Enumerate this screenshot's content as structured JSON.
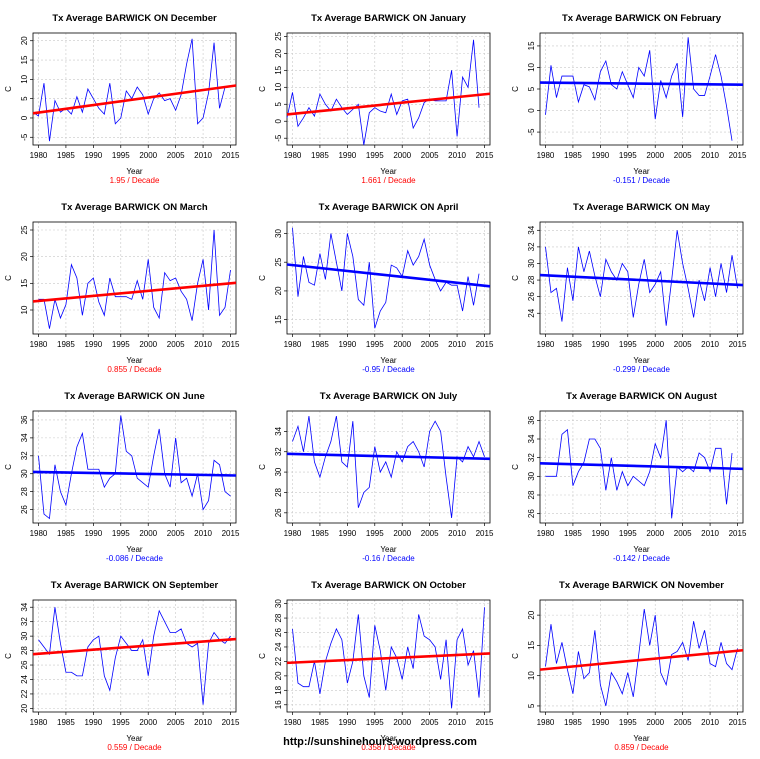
{
  "credit": "http://sunshinehours.wordpress.com",
  "colors": {
    "up": "#ff0000",
    "down": "#0000ff",
    "series": "#0000ff",
    "grid": "#c8c8c8"
  },
  "chart_data": [
    {
      "type": "line",
      "title": "Tx Average BARWICK ON December",
      "xlabel": "Year",
      "ylabel": "C",
      "trend_label": "1.95  / Decade",
      "trend_direction": "up",
      "x_range": [
        1979,
        2016
      ],
      "xticks": [
        1980,
        1985,
        1990,
        1995,
        2000,
        2005,
        2010,
        2015
      ],
      "ylim": [
        -7,
        22
      ],
      "yticks": [
        -5,
        0,
        5,
        10,
        15,
        20
      ],
      "trend_line": [
        1.2,
        8.4
      ],
      "x_start": 1979,
      "values": [
        1.5,
        0.5,
        9,
        -6,
        4.5,
        1.5,
        2.5,
        1,
        5.5,
        1.5,
        7.5,
        5,
        2.5,
        1,
        9,
        -1.5,
        0,
        7,
        5,
        8,
        6,
        1,
        5,
        6.5,
        4.5,
        5,
        2,
        6,
        14,
        20.5,
        -1.5,
        0,
        6.5,
        19.5,
        2.5,
        8
      ]
    },
    {
      "type": "line",
      "title": "Tx Average BARWICK ON January",
      "xlabel": "Year",
      "ylabel": "C",
      "trend_label": "1.661  / Decade",
      "trend_direction": "up",
      "x_range": [
        1979,
        2016
      ],
      "xticks": [
        1980,
        1985,
        1990,
        1995,
        2000,
        2005,
        2010,
        2015
      ],
      "ylim": [
        -7,
        26
      ],
      "yticks": [
        -5,
        0,
        5,
        10,
        15,
        20,
        25
      ],
      "trend_line": [
        2.0,
        8.1
      ],
      "x_start": 1979,
      "values": [
        1,
        8.5,
        -1.5,
        1,
        4,
        1.5,
        8,
        5,
        3,
        6.5,
        4,
        2,
        3.5,
        5,
        -7,
        2.5,
        4,
        3,
        2.5,
        8,
        2,
        6,
        6.5,
        -2,
        1,
        5.5,
        6.5,
        6,
        6,
        6,
        15,
        -4.5,
        13,
        10,
        24,
        4
      ]
    },
    {
      "type": "line",
      "title": "Tx Average BARWICK ON February",
      "xlabel": "Year",
      "ylabel": "C",
      "trend_label": "-0.151  / Decade",
      "trend_direction": "down",
      "x_range": [
        1979,
        2016
      ],
      "xticks": [
        1980,
        1985,
        1990,
        1995,
        2000,
        2005,
        2010,
        2015
      ],
      "ylim": [
        -8,
        18
      ],
      "yticks": [
        -5,
        0,
        5,
        10,
        15
      ],
      "trend_line": [
        6.5,
        6.0
      ],
      "x_start": 1980,
      "values": [
        -1,
        10.5,
        3,
        8,
        8,
        8,
        2,
        6,
        5.5,
        2.5,
        9,
        11.5,
        6,
        5,
        9,
        6,
        3,
        10,
        8,
        14,
        -2,
        7,
        3,
        8,
        11,
        -1.5,
        17,
        5,
        3.5,
        3.5,
        8,
        13,
        8,
        1,
        -7
      ]
    },
    {
      "type": "line",
      "title": "Tx Average BARWICK ON March",
      "xlabel": "Year",
      "ylabel": "C",
      "trend_label": "0.855  / Decade",
      "trend_direction": "up",
      "x_range": [
        1979,
        2016
      ],
      "xticks": [
        1980,
        1985,
        1990,
        1995,
        2000,
        2005,
        2010,
        2015
      ],
      "ylim": [
        5.5,
        26.5
      ],
      "yticks": [
        10,
        15,
        20,
        25
      ],
      "trend_line": [
        11.6,
        15.1
      ],
      "x_start": 1980,
      "values": [
        12,
        12,
        6.5,
        12,
        8.5,
        11,
        18.5,
        16,
        9,
        15,
        16,
        11.5,
        9,
        16,
        12.5,
        12.5,
        12.5,
        12,
        15.5,
        12,
        19.5,
        10.5,
        8.5,
        17,
        15.5,
        16,
        13.5,
        12,
        8,
        15,
        19.5,
        10,
        25,
        9,
        10.5,
        17.5
      ]
    },
    {
      "type": "line",
      "title": "Tx Average BARWICK ON April",
      "xlabel": "Year",
      "ylabel": "C",
      "trend_label": "-0.95  / Decade",
      "trend_direction": "down",
      "x_range": [
        1979,
        2016
      ],
      "xticks": [
        1980,
        1985,
        1990,
        1995,
        2000,
        2005,
        2010,
        2015
      ],
      "ylim": [
        12.5,
        32
      ],
      "yticks": [
        15,
        20,
        25,
        30
      ],
      "trend_line": [
        24.6,
        20.8
      ],
      "x_start": 1980,
      "values": [
        31,
        19,
        26,
        21.5,
        21,
        26.5,
        22,
        30,
        25,
        20,
        30,
        26,
        18.5,
        17.5,
        25,
        13.5,
        16.5,
        18,
        24.5,
        24,
        22.5,
        27,
        24.5,
        26,
        29,
        24.5,
        22,
        20,
        21.5,
        21,
        21,
        16.5,
        22.5,
        17.5,
        23
      ]
    },
    {
      "type": "line",
      "title": "Tx Average BARWICK ON May",
      "xlabel": "Year",
      "ylabel": "C",
      "trend_label": "-0.299  / Decade",
      "trend_direction": "down",
      "x_range": [
        1979,
        2016
      ],
      "xticks": [
        1980,
        1985,
        1990,
        1995,
        2000,
        2005,
        2010,
        2015
      ],
      "ylim": [
        21.5,
        35
      ],
      "yticks": [
        24,
        26,
        28,
        30,
        32,
        34
      ],
      "trend_line": [
        28.6,
        27.4
      ],
      "x_start": 1980,
      "values": [
        32,
        26.5,
        27,
        23,
        29.5,
        25.5,
        32,
        29,
        31.5,
        28.5,
        26,
        30.5,
        29,
        28,
        30,
        29,
        23.5,
        27.5,
        30.5,
        26.5,
        27.5,
        29,
        22.5,
        28,
        34,
        30,
        27,
        23.5,
        28,
        25.5,
        29.5,
        26,
        30,
        26.5,
        31,
        27
      ]
    },
    {
      "type": "line",
      "title": "Tx Average BARWICK ON June",
      "xlabel": "Year",
      "ylabel": "C",
      "trend_label": "-0.086  / Decade",
      "trend_direction": "down",
      "x_range": [
        1979,
        2016
      ],
      "xticks": [
        1980,
        1985,
        1990,
        1995,
        2000,
        2005,
        2010,
        2015
      ],
      "ylim": [
        24.5,
        37
      ],
      "yticks": [
        26,
        28,
        30,
        32,
        34,
        36
      ],
      "trend_line": [
        30.2,
        29.8
      ],
      "x_start": 1980,
      "values": [
        32,
        25.5,
        25,
        31,
        28,
        26.5,
        30,
        33,
        34.5,
        30.5,
        30.5,
        30.5,
        28.5,
        29.5,
        30,
        36.5,
        32.5,
        32,
        29.5,
        29,
        28.5,
        32,
        35,
        30,
        28.5,
        34,
        29,
        29.5,
        27.5,
        30,
        26,
        27,
        31.5,
        31,
        28,
        27.5
      ]
    },
    {
      "type": "line",
      "title": "Tx Average BARWICK ON July",
      "xlabel": "Year",
      "ylabel": "C",
      "trend_label": "-0.16  / Decade",
      "trend_direction": "down",
      "x_range": [
        1979,
        2016
      ],
      "xticks": [
        1980,
        1985,
        1990,
        1995,
        2000,
        2005,
        2010,
        2015
      ],
      "ylim": [
        25,
        36
      ],
      "yticks": [
        26,
        28,
        30,
        32,
        34
      ],
      "trend_line": [
        31.8,
        31.3
      ],
      "x_start": 1980,
      "values": [
        33,
        34.5,
        32,
        35.5,
        31,
        29.5,
        31.5,
        33,
        35.5,
        31,
        30.5,
        35,
        26.5,
        28,
        28.5,
        32.5,
        30,
        31,
        29.5,
        32,
        31,
        32.5,
        33,
        32,
        30.5,
        34,
        35,
        34,
        29.5,
        25.5,
        31.5,
        31,
        32.5,
        31.5,
        33,
        31.5
      ]
    },
    {
      "type": "line",
      "title": "Tx Average BARWICK ON August",
      "xlabel": "Year",
      "ylabel": "C",
      "trend_label": "-0.142  / Decade",
      "trend_direction": "down",
      "x_range": [
        1979,
        2016
      ],
      "xticks": [
        1980,
        1985,
        1990,
        1995,
        2000,
        2005,
        2010,
        2015
      ],
      "ylim": [
        25,
        37
      ],
      "yticks": [
        26,
        28,
        30,
        32,
        34,
        36
      ],
      "trend_line": [
        31.4,
        30.8
      ],
      "x_start": 1980,
      "values": [
        30,
        30,
        30,
        34.5,
        35,
        29,
        30.5,
        31.5,
        34,
        34,
        33,
        28.5,
        32,
        28.5,
        30.5,
        29,
        30,
        29.5,
        29,
        30.5,
        33.5,
        32,
        36,
        25.5,
        31,
        30.5,
        31,
        30.5,
        32.5,
        32,
        30.5,
        33,
        33,
        27,
        32.5
      ]
    },
    {
      "type": "line",
      "title": "Tx Average BARWICK ON September",
      "xlabel": "Year",
      "ylabel": "C",
      "trend_label": "0.559  / Decade",
      "trend_direction": "up",
      "x_range": [
        1979,
        2016
      ],
      "xticks": [
        1980,
        1985,
        1990,
        1995,
        2000,
        2005,
        2010,
        2015
      ],
      "ylim": [
        19.5,
        35
      ],
      "yticks": [
        20,
        22,
        24,
        26,
        28,
        30,
        32,
        34
      ],
      "trend_line": [
        27.5,
        29.6
      ],
      "x_start": 1980,
      "values": [
        29.5,
        28.5,
        27.5,
        34,
        29,
        25,
        25,
        24.5,
        24.5,
        28.5,
        29.5,
        30,
        24.5,
        22.5,
        27,
        30,
        29,
        28,
        28,
        29.5,
        24.5,
        30,
        33.5,
        32,
        30.5,
        30.5,
        31,
        29,
        28.5,
        29,
        20.5,
        29,
        30.5,
        29.5,
        29,
        30
      ]
    },
    {
      "type": "line",
      "title": "Tx Average BARWICK ON October",
      "xlabel": "Year",
      "ylabel": "C",
      "trend_label": "0.358  / Decade",
      "trend_direction": "up",
      "x_range": [
        1979,
        2016
      ],
      "xticks": [
        1980,
        1985,
        1990,
        1995,
        2000,
        2005,
        2010,
        2015
      ],
      "ylim": [
        15,
        30.5
      ],
      "yticks": [
        16,
        18,
        20,
        22,
        24,
        26,
        28,
        30
      ],
      "trend_line": [
        21.8,
        23.1
      ],
      "x_start": 1980,
      "values": [
        26.5,
        19,
        18.5,
        18.5,
        22,
        17.5,
        22,
        24.5,
        26.5,
        25,
        19,
        22,
        28.5,
        20,
        17,
        27,
        23.5,
        18,
        24,
        22.5,
        19.5,
        24,
        21,
        28.5,
        25.5,
        25,
        24,
        19.5,
        25,
        15.5,
        25,
        26.5,
        21.5,
        23.5,
        17,
        29.5
      ]
    },
    {
      "type": "line",
      "title": "Tx Average BARWICK ON November",
      "xlabel": "Year",
      "ylabel": "C",
      "trend_label": "0.859  / Decade",
      "trend_direction": "up",
      "x_range": [
        1979,
        2016
      ],
      "xticks": [
        1980,
        1985,
        1990,
        1995,
        2000,
        2005,
        2010,
        2015
      ],
      "ylim": [
        4,
        22.5
      ],
      "yticks": [
        5,
        10,
        15,
        20
      ],
      "trend_line": [
        11.0,
        14.2
      ],
      "x_start": 1980,
      "values": [
        11.5,
        18.5,
        12,
        15.5,
        11,
        7,
        14,
        9.5,
        10.5,
        17.5,
        8.5,
        5,
        10.5,
        9,
        7,
        10.5,
        6.5,
        13.5,
        21,
        15,
        20,
        10.5,
        8.5,
        13.5,
        14,
        15.5,
        12.5,
        19,
        14.5,
        17.5,
        12,
        11.5,
        15.5,
        12,
        11,
        14.5
      ]
    }
  ]
}
